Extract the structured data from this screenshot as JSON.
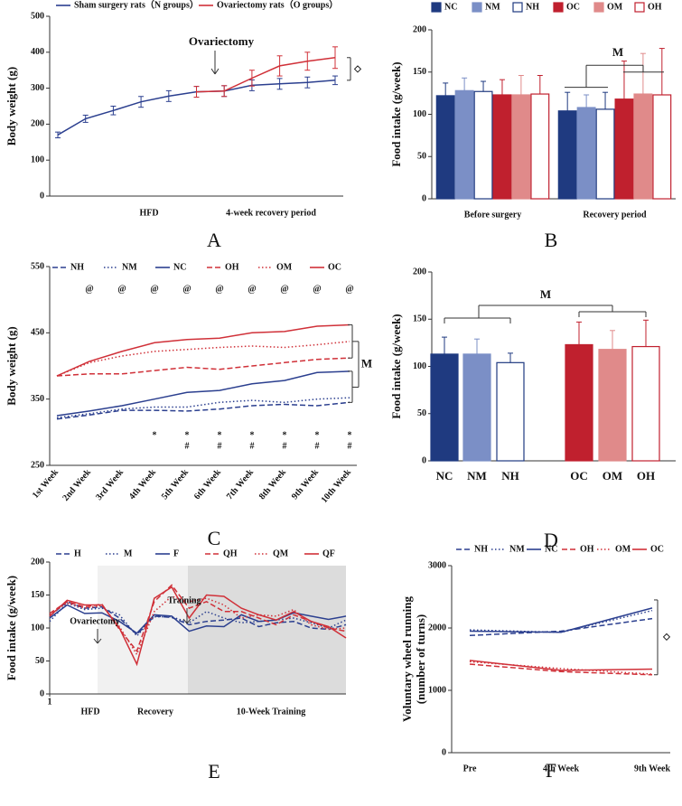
{
  "chart_data": [
    {
      "type": "line",
      "panel": "A",
      "ylabel": "Body weight (g)",
      "categories": [
        null,
        null,
        null,
        null,
        null,
        null,
        null,
        null,
        null,
        null,
        null
      ],
      "ylim": [
        0,
        500
      ],
      "yticks": [
        0,
        100,
        200,
        300,
        400,
        500
      ],
      "annotations": [
        "Ovariectomy",
        "HFD",
        "4-week recovery period",
        "◇"
      ],
      "series": [
        {
          "name": "Sham surgery rats（N groups）",
          "color": "#2b3f8f",
          "style": "solid",
          "values": [
            170,
            215,
            238,
            262,
            278,
            290,
            292,
            308,
            312,
            316,
            322
          ],
          "errors": [
            8,
            10,
            12,
            15,
            15,
            15,
            15,
            15,
            15,
            15,
            12
          ]
        },
        {
          "name": "Ovariectomy rats（O groups）",
          "color": "#d03038",
          "style": "solid",
          "values": [
            null,
            null,
            null,
            null,
            null,
            290,
            292,
            328,
            362,
            375,
            385
          ],
          "errors": [
            null,
            null,
            null,
            null,
            null,
            15,
            15,
            22,
            28,
            25,
            30
          ]
        }
      ]
    },
    {
      "type": "grouped_bar",
      "panel": "B",
      "ylabel": "Food intake (g/week)",
      "categories": [
        "Before surgery",
        "Recovery period"
      ],
      "ylim": [
        0,
        200
      ],
      "yticks": [
        0,
        50,
        100,
        150,
        200
      ],
      "annotations": [
        "M"
      ],
      "series": [
        {
          "name": "NC",
          "color": "#1f3a80",
          "hollow": false,
          "values": [
            122,
            104
          ],
          "errors": [
            15,
            22
          ]
        },
        {
          "name": "NM",
          "color": "#7b8fc6",
          "hollow": false,
          "values": [
            128,
            108
          ],
          "errors": [
            15,
            15
          ]
        },
        {
          "name": "NH",
          "color": "#1f3a80",
          "hollow": true,
          "values": [
            127,
            106
          ],
          "errors": [
            12,
            20
          ]
        },
        {
          "name": "OC",
          "color": "#c0202e",
          "hollow": false,
          "values": [
            123,
            118
          ],
          "errors": [
            18,
            45
          ]
        },
        {
          "name": "OM",
          "color": "#e08a8a",
          "hollow": false,
          "values": [
            123,
            124
          ],
          "errors": [
            23,
            48
          ]
        },
        {
          "name": "OH",
          "color": "#c0202e",
          "hollow": true,
          "values": [
            124,
            123
          ],
          "errors": [
            22,
            55
          ]
        }
      ]
    },
    {
      "type": "line",
      "panel": "C",
      "ylabel": "Body weight (g)",
      "categories": [
        "1st Week",
        "2nd Week",
        "3rd Week",
        "4th Week",
        "5th Week",
        "6th Week",
        "7th Week",
        "8th Week",
        "9th Week",
        "10th Week"
      ],
      "ylim": [
        250,
        550
      ],
      "yticks": [
        250,
        350,
        450,
        550
      ],
      "annotations": [
        "@",
        "*",
        "#",
        "M"
      ],
      "series": [
        {
          "name": "NH",
          "color": "#2b3f8f",
          "style": "dashed",
          "values": [
            320,
            326,
            333,
            333,
            332,
            335,
            340,
            342,
            340,
            345
          ]
        },
        {
          "name": "NM",
          "color": "#2b3f8f",
          "style": "dotted",
          "values": [
            322,
            328,
            335,
            338,
            338,
            345,
            348,
            345,
            350,
            352
          ]
        },
        {
          "name": "NC",
          "color": "#2b3f8f",
          "style": "solid",
          "values": [
            325,
            332,
            340,
            350,
            360,
            363,
            373,
            378,
            390,
            392
          ]
        },
        {
          "name": "OH",
          "color": "#d03038",
          "style": "dashed",
          "values": [
            385,
            388,
            388,
            393,
            398,
            395,
            400,
            405,
            410,
            412
          ]
        },
        {
          "name": "OM",
          "color": "#d03038",
          "style": "dotted",
          "values": [
            385,
            405,
            415,
            422,
            425,
            428,
            430,
            428,
            432,
            437
          ]
        },
        {
          "name": "OC",
          "color": "#d03038",
          "style": "solid",
          "values": [
            385,
            407,
            422,
            435,
            440,
            442,
            450,
            452,
            460,
            462
          ]
        }
      ]
    },
    {
      "type": "bar",
      "panel": "D",
      "ylabel": "Food intake (g/week)",
      "categories": [
        "NC",
        "NM",
        "NH",
        "OC",
        "OM",
        "OH"
      ],
      "values": [
        113,
        113,
        104,
        123,
        118,
        121
      ],
      "errors": [
        18,
        16,
        10,
        24,
        20,
        28
      ],
      "colors": [
        "#1f3a80",
        "#7b8fc6",
        "#1f3a80",
        "#c0202e",
        "#e08a8a",
        "#c0202e"
      ],
      "hollow": [
        false,
        false,
        true,
        false,
        false,
        true
      ],
      "ylim": [
        0,
        200
      ],
      "yticks": [
        0,
        50,
        100,
        150,
        200
      ],
      "annotations": [
        "M"
      ]
    },
    {
      "type": "line",
      "panel": "E",
      "ylabel": "Food intake (g/week)",
      "x": [
        1,
        2,
        3,
        4,
        5,
        6,
        7,
        8,
        9,
        10,
        11,
        12,
        13,
        14,
        15,
        16,
        17,
        18
      ],
      "xlim": [
        1,
        18
      ],
      "xticks": [
        1
      ],
      "ylim": [
        0,
        200
      ],
      "yticks": [
        0,
        50,
        100,
        150,
        200
      ],
      "annotations": [
        "Ovariectomy",
        "Training",
        "HFD",
        "Recovery",
        "10-Week Training"
      ],
      "series": [
        {
          "name": "H",
          "color": "#2b3f8f",
          "style": "dashed",
          "values": [
            118,
            140,
            130,
            132,
            115,
            90,
            118,
            116,
            105,
            110,
            112,
            115,
            102,
            108,
            110,
            100,
            98,
            105
          ]
        },
        {
          "name": "M",
          "color": "#2b3f8f",
          "style": "dotted",
          "values": [
            110,
            138,
            128,
            130,
            120,
            88,
            117,
            117,
            108,
            125,
            115,
            108,
            110,
            112,
            115,
            108,
            100,
            112
          ]
        },
        {
          "name": "F",
          "color": "#2b3f8f",
          "style": "solid",
          "values": [
            115,
            135,
            122,
            123,
            110,
            92,
            120,
            118,
            95,
            103,
            102,
            120,
            110,
            112,
            123,
            118,
            113,
            118
          ]
        },
        {
          "name": "QH",
          "color": "#d03038",
          "style": "dashed",
          "values": [
            122,
            140,
            132,
            136,
            98,
            65,
            140,
            165,
            130,
            140,
            125,
            125,
            115,
            105,
            120,
            110,
            100,
            95
          ]
        },
        {
          "name": "QM",
          "color": "#d03038",
          "style": "dotted",
          "values": [
            120,
            138,
            130,
            134,
            102,
            60,
            125,
            148,
            140,
            145,
            135,
            115,
            120,
            118,
            128,
            105,
            98,
            100
          ]
        },
        {
          "name": "QF",
          "color": "#d03038",
          "style": "solid",
          "values": [
            118,
            142,
            135,
            135,
            100,
            45,
            145,
            162,
            115,
            150,
            148,
            130,
            120,
            112,
            125,
            110,
            102,
            85
          ]
        }
      ]
    },
    {
      "type": "line",
      "panel": "F",
      "ylabel": [
        "Voluntary wheel running",
        "(number of turns)"
      ],
      "categories": [
        "Pre",
        "4th Week",
        "9th Week"
      ],
      "ylim": [
        0,
        3000
      ],
      "yticks": [
        0,
        1000,
        2000,
        3000
      ],
      "annotations": [
        "◇"
      ],
      "series": [
        {
          "name": "NH",
          "color": "#2b3f8f",
          "style": "dashed",
          "values": [
            1880,
            1950,
            2150
          ]
        },
        {
          "name": "NM",
          "color": "#2b3f8f",
          "style": "dotted",
          "values": [
            1970,
            1930,
            2280
          ]
        },
        {
          "name": "NC",
          "color": "#2b3f8f",
          "style": "solid",
          "values": [
            1950,
            1930,
            2320
          ]
        },
        {
          "name": "OH",
          "color": "#d03038",
          "style": "dashed",
          "values": [
            1420,
            1300,
            1250
          ]
        },
        {
          "name": "OM",
          "color": "#d03038",
          "style": "dotted",
          "values": [
            1460,
            1350,
            1260
          ]
        },
        {
          "name": "OC",
          "color": "#d03038",
          "style": "solid",
          "values": [
            1480,
            1320,
            1340
          ]
        }
      ]
    }
  ]
}
